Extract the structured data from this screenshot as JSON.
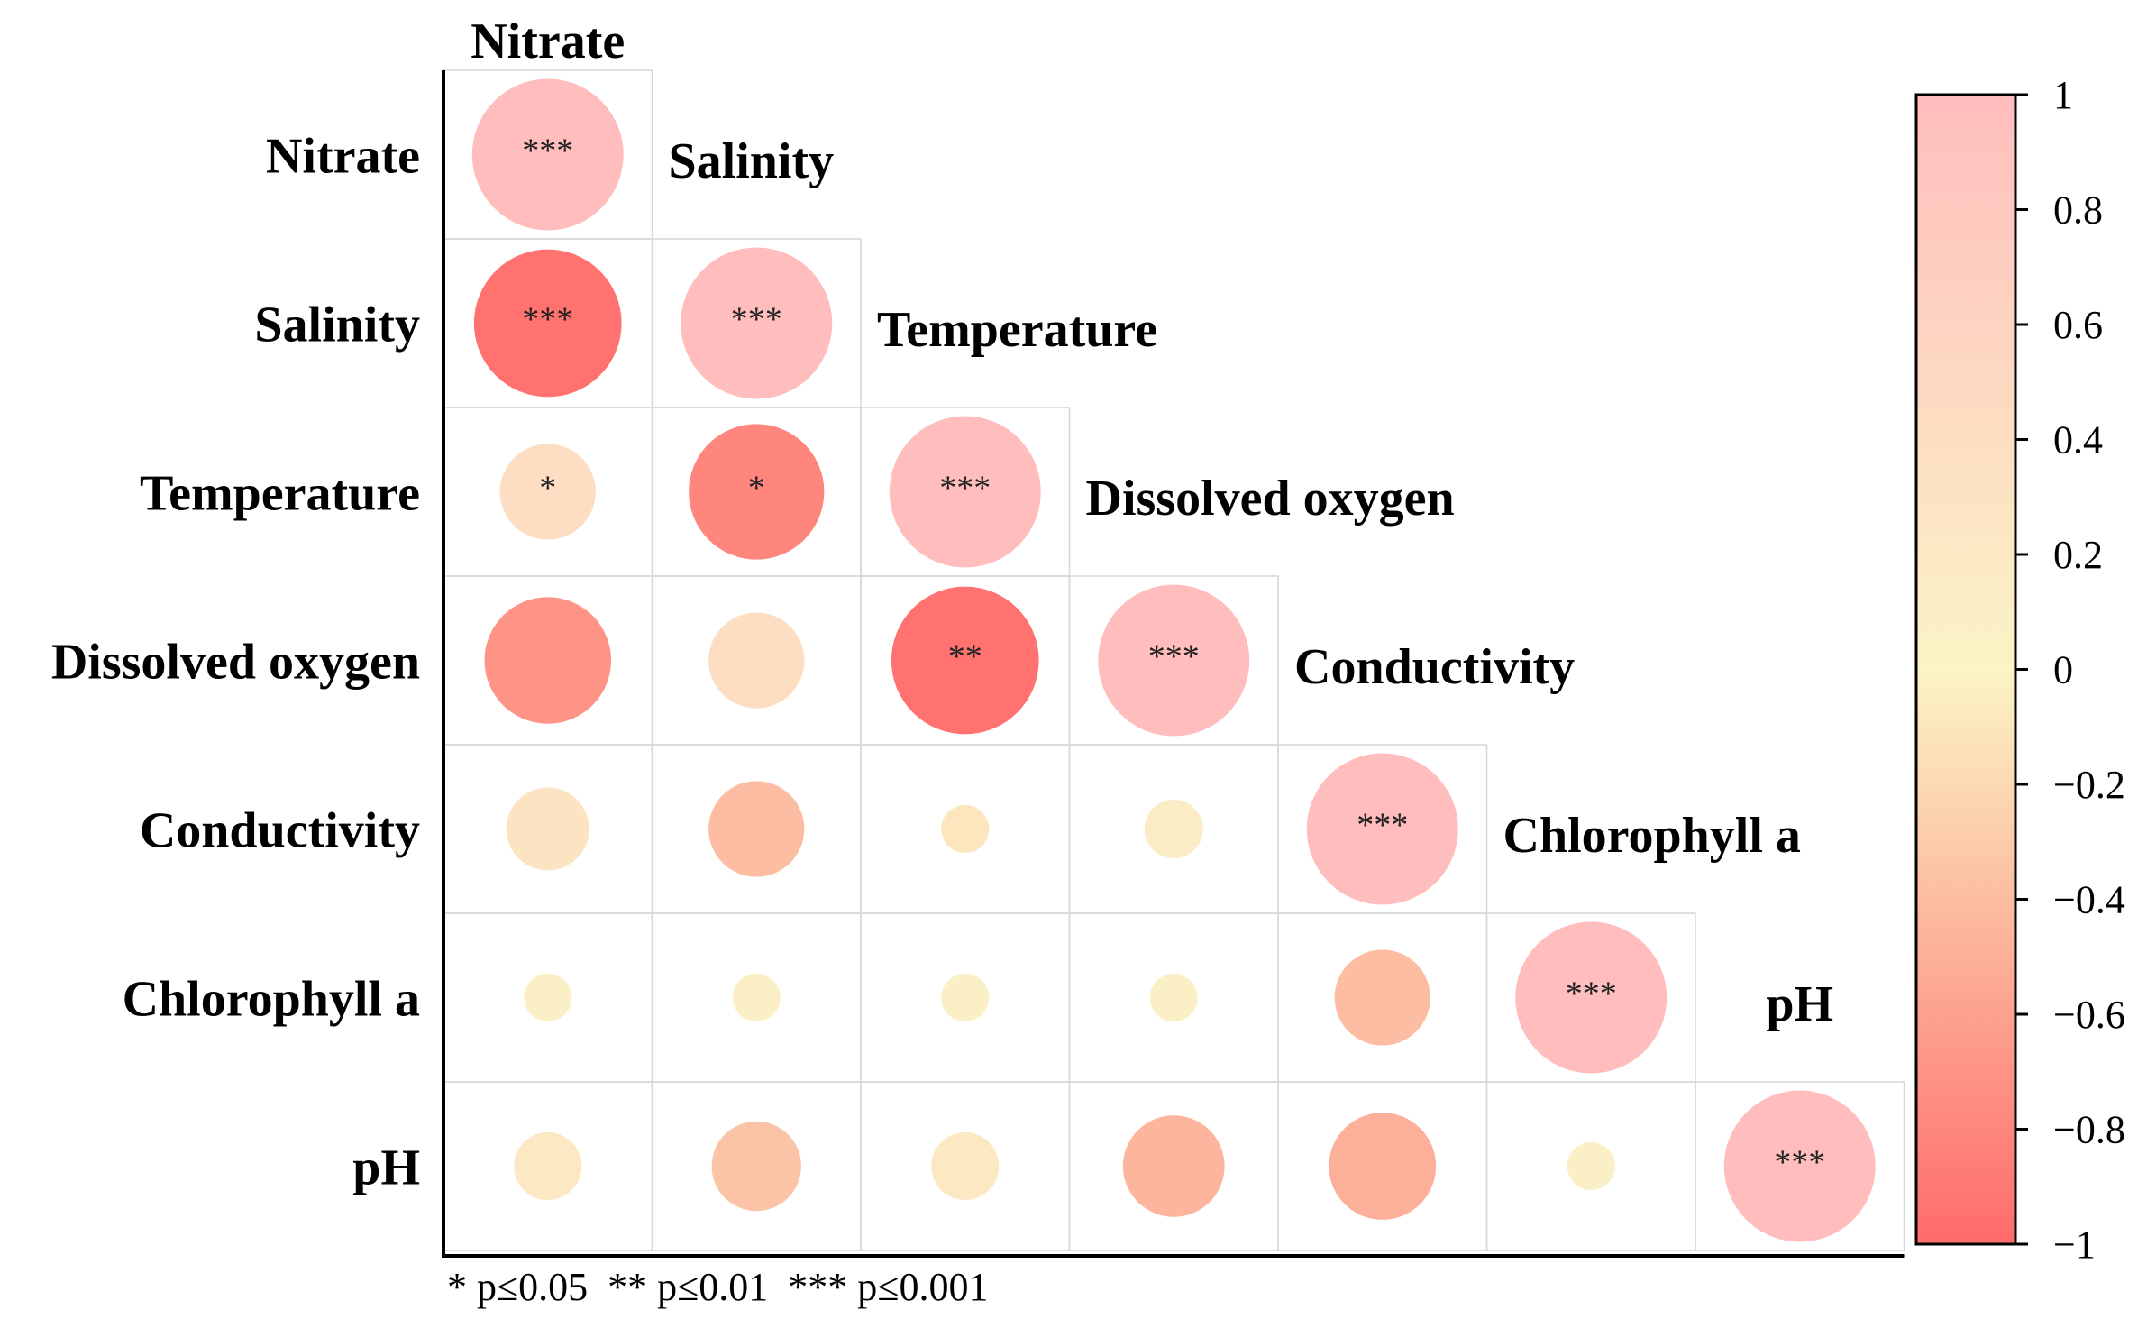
{
  "chart_data": {
    "type": "heatmap",
    "variables": [
      "Nitrate",
      "Salinity",
      "Temperature",
      "Dissolved oxygen",
      "Conductivity",
      "Chlorophyll a",
      "pH"
    ],
    "matrix": [
      [
        1.0,
        null,
        null,
        null,
        null,
        null,
        null
      ],
      [
        -0.95,
        1.0,
        null,
        null,
        null,
        null,
        null
      ],
      [
        0.4,
        -0.8,
        1.0,
        null,
        null,
        null,
        null
      ],
      [
        -0.7,
        0.4,
        -0.95,
        1.0,
        null,
        null,
        null
      ],
      [
        0.3,
        -0.4,
        -0.1,
        0.15,
        1.0,
        null,
        null
      ],
      [
        0.1,
        0.1,
        0.1,
        0.1,
        -0.4,
        1.0,
        null
      ],
      [
        0.2,
        -0.35,
        0.2,
        -0.45,
        -0.5,
        0.1,
        1.0
      ]
    ],
    "significance": [
      [
        "***",
        "",
        "",
        "",
        "",
        "",
        ""
      ],
      [
        "***",
        "***",
        "",
        "",
        "",
        "",
        ""
      ],
      [
        "*",
        "*",
        "***",
        "",
        "",
        "",
        ""
      ],
      [
        "",
        "",
        "**",
        "***",
        "",
        "",
        ""
      ],
      [
        "",
        "",
        "",
        "",
        "***",
        "",
        ""
      ],
      [
        "",
        "",
        "",
        "",
        "",
        "***",
        ""
      ],
      [
        "",
        "",
        "",
        "",
        "",
        "",
        "***"
      ]
    ],
    "colorbar": {
      "range": [
        -1,
        1
      ],
      "ticks": [
        "1",
        "0.8",
        "0.6",
        "0.4",
        "0.2",
        "0",
        "−0.2",
        "−0.4",
        "−0.6",
        "−0.8",
        "−1"
      ],
      "colors": {
        "neg": "#ff6b6b",
        "mid": "#fbf4c6",
        "pos": "#ffbdbd"
      }
    },
    "legend_note": "* p≤0.05  ** p≤0.01  *** p≤0.001"
  }
}
